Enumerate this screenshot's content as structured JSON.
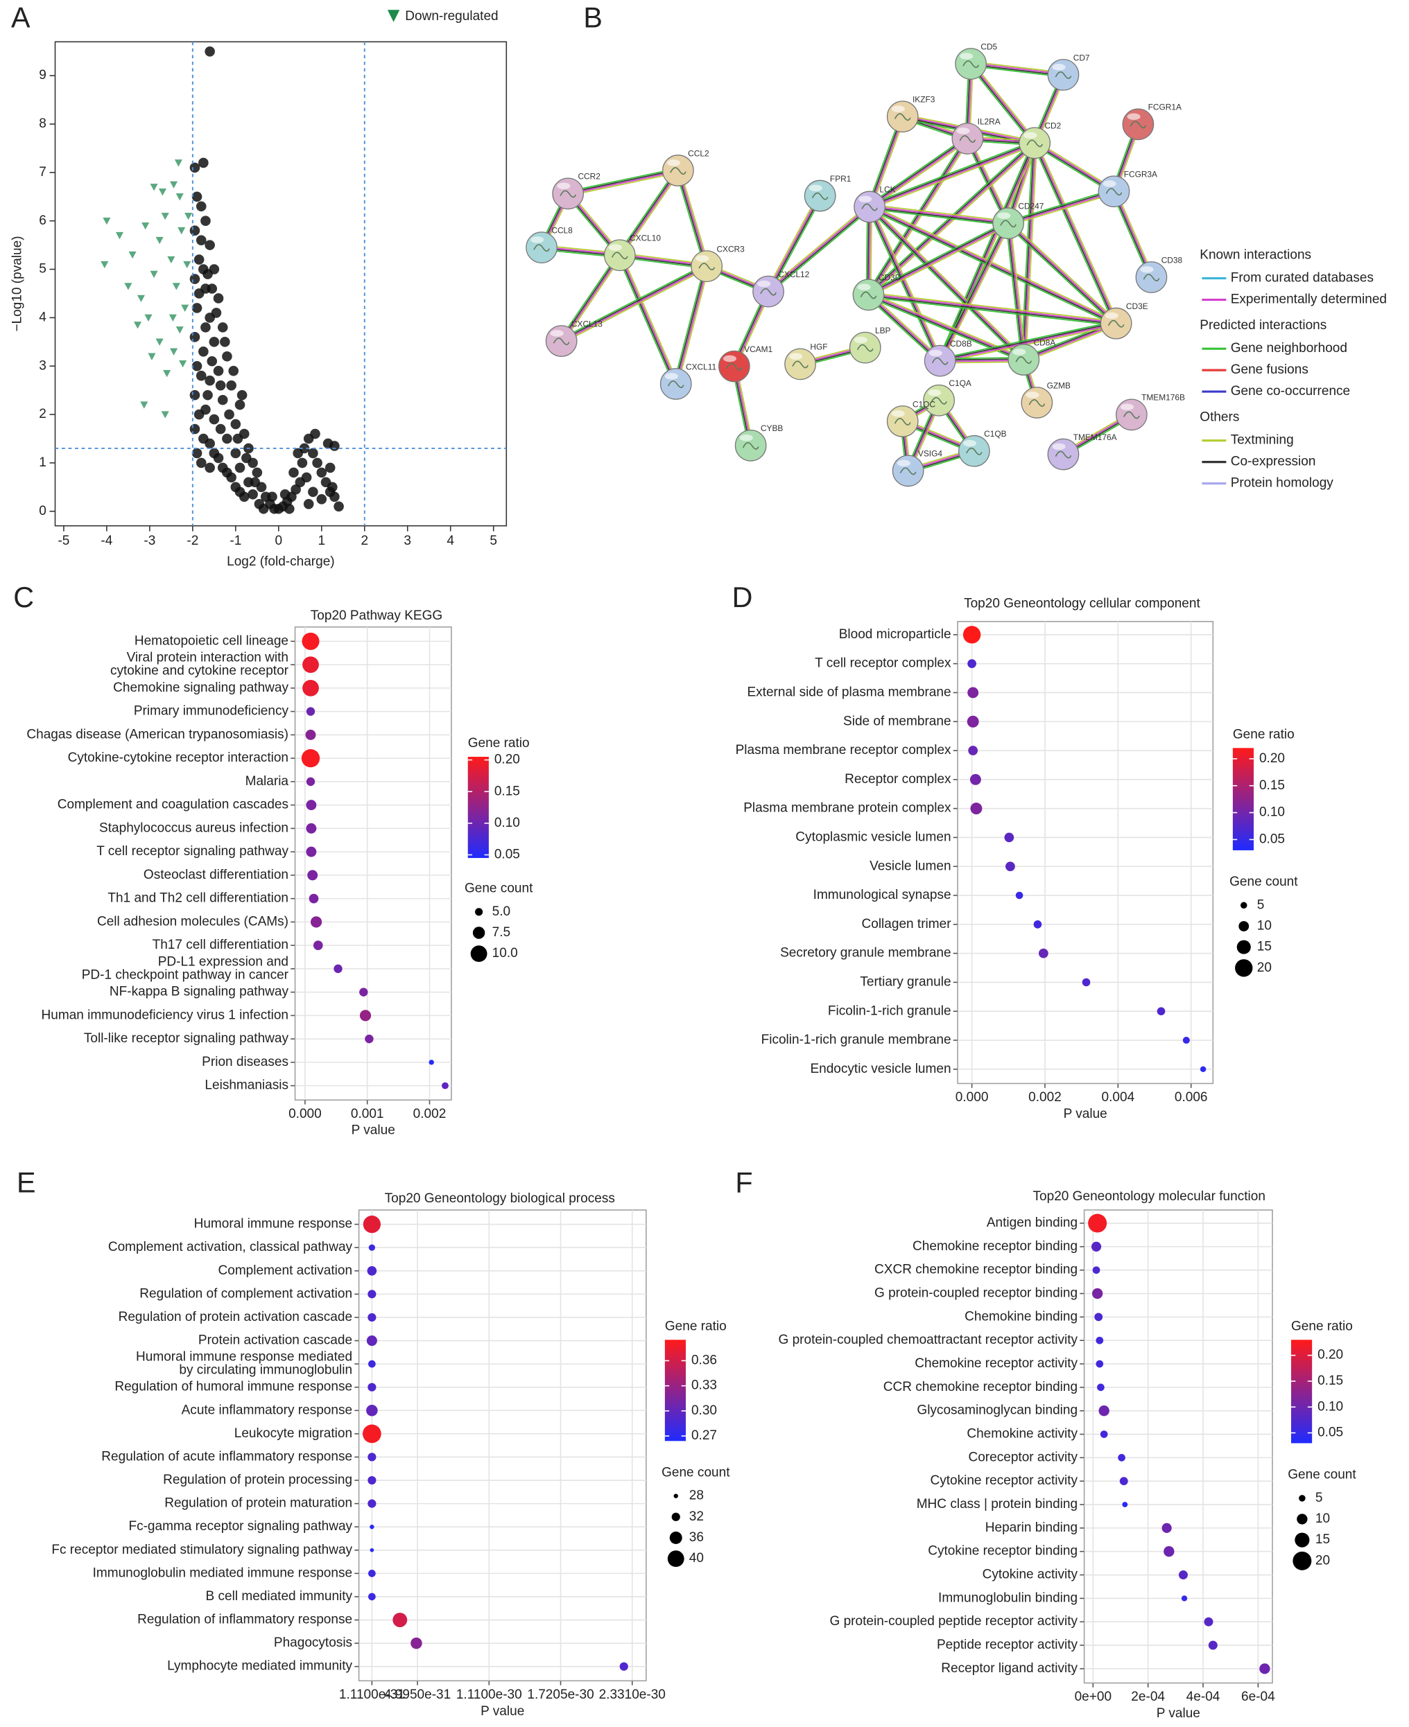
{
  "chart_data": [
    {
      "type": "scatter",
      "panel_label": "A",
      "x_label": "Log2 (fold-charge)",
      "y_label": "−Log10 (pvalue)",
      "xlim": [
        -5.2,
        5.3
      ],
      "ylim": [
        -0.3,
        9.7
      ],
      "xticks": [
        -5,
        -4,
        -3,
        -2,
        -1,
        0,
        1,
        2,
        3,
        4,
        5
      ],
      "yticks": [
        0,
        1,
        2,
        3,
        4,
        5,
        6,
        7,
        8,
        9
      ],
      "threshold_x": [
        -2,
        2
      ],
      "threshold_y": [
        1.3
      ],
      "threshold_color": "#4a90d9",
      "series": [
        {
          "color": "#111111",
          "marker": "circle",
          "x": [
            -1.6,
            -1.95,
            -1.75,
            -1.9,
            -1.8,
            -1.7,
            -1.95,
            -1.6,
            -1.85,
            -1.5,
            -1.95,
            -1.7,
            -1.4,
            -1.9,
            -1.6,
            -1.3,
            -1.95,
            -1.5,
            -1.75,
            -1.2,
            -1.9,
            -1.4,
            -1.6,
            -1.1,
            -1.95,
            -1.3,
            -0.9,
            -1.7,
            -1.5,
            -1.0,
            -1.95,
            -0.8,
            -1.2,
            -1.6,
            -0.7,
            -1.0,
            -1.4,
            -0.6,
            -1.8,
            -0.9,
            -1.2,
            -0.5,
            -0.7,
            -1.0,
            -0.4,
            -0.6,
            -0.3,
            -0.8,
            -0.2,
            -0.45,
            0,
            -0.1,
            0.1,
            0.2,
            0.3,
            0.4,
            0.5,
            0.35,
            0.55,
            0.6,
            0.45,
            0.7,
            0.8,
            0.9,
            1.0,
            0.65,
            1.1,
            1.2,
            1.25,
            0.8,
            1.3,
            0.85,
            1.15,
            1.2,
            1.3,
            1.0,
            0.7,
            1.4,
            -1.8,
            -1.65,
            -1.45,
            -1.25,
            -1.05,
            -0.85,
            -1.35,
            -1.55,
            -1.7,
            -1.85,
            -1.75,
            -1.55,
            -1.15,
            -0.95,
            -0.75,
            -0.55,
            -1.35,
            -1.8,
            -1.65,
            -1.85,
            -1.75,
            -1.5,
            -1.3,
            -1.1,
            -0.9,
            -0.35,
            -0.15,
            0.15,
            0.25,
            -1.9,
            -1.6
          ],
          "values": [
            9.5,
            7.1,
            7.2,
            6.5,
            6.3,
            6.0,
            5.8,
            5.5,
            5.2,
            5.0,
            4.8,
            4.6,
            4.4,
            4.2,
            4.0,
            3.8,
            3.6,
            3.5,
            3.3,
            3.2,
            3.0,
            2.9,
            2.7,
            2.6,
            2.4,
            2.3,
            2.2,
            2.1,
            1.9,
            1.8,
            1.7,
            1.6,
            1.5,
            1.4,
            1.3,
            1.2,
            1.1,
            1.0,
            1.0,
            0.9,
            0.8,
            0.8,
            0.6,
            0.5,
            0.5,
            0.35,
            0.3,
            0.3,
            0.15,
            0.15,
            0.05,
            0.05,
            0.1,
            0.2,
            0.3,
            0.45,
            0.6,
            0.8,
            1.0,
            1.3,
            1.2,
            1.5,
            1.2,
            1.0,
            0.8,
            0.7,
            0.6,
            0.9,
            0.5,
            0.4,
            1.35,
            1.6,
            1.4,
            0.4,
            0.3,
            0.25,
            0.15,
            0.1,
            5.6,
            4.9,
            4.1,
            3.5,
            2.9,
            2.4,
            2.6,
            3.1,
            3.8,
            4.5,
            5.0,
            4.6,
            2.0,
            1.5,
            1.1,
            0.6,
            1.7,
            2.8,
            2.4,
            2.0,
            1.5,
            1.2,
            0.9,
            0.7,
            0.4,
            0.05,
            0.3,
            0.35,
            0.05,
            1.2,
            0.9
          ]
        },
        {
          "name": "Down-regulated",
          "color": "#5aa880",
          "marker": "triangle",
          "x": [
            -4.0,
            -3.13,
            -2.64,
            -2.9,
            -2.7,
            -2.44,
            -2.3,
            -4.05,
            -3.7,
            -3.4,
            -3.5,
            -3.2,
            -3.03,
            -2.9,
            -2.77,
            -2.64,
            -2.5,
            -2.38,
            -2.3,
            -2.44,
            -2.6,
            -2.26,
            -2.18,
            -2.13,
            -2.77,
            -3.1,
            -3.28,
            -2.95,
            -2.46,
            -2.23,
            -2.1,
            -2.33
          ],
          "values": [
            6.0,
            2.2,
            2.0,
            6.7,
            6.6,
            6.75,
            6.5,
            5.1,
            5.7,
            5.3,
            4.65,
            4.4,
            4.0,
            4.9,
            5.6,
            6.1,
            5.2,
            4.65,
            3.75,
            3.3,
            2.85,
            5.8,
            4.2,
            5.1,
            3.5,
            5.9,
            3.85,
            3.2,
            4.0,
            3.05,
            6.1,
            7.2
          ]
        }
      ]
    },
    {
      "type": "dot",
      "panel_label": "C",
      "title": "Top20 Pathway KEGG",
      "x_label": "P value",
      "categories": [
        "Hematopoietic cell lineage",
        [
          "Viral protein interaction with",
          "cytokine and cytokine receptor"
        ],
        "Chemokine signaling pathway",
        "Primary immunodeficiency",
        "Chagas disease (American trypanosomiasis)",
        "Cytokine-cytokine receptor interaction",
        "Malaria",
        "Complement and coagulation cascades",
        "Staphylococcus aureus infection",
        "T cell receptor signaling pathway",
        "Osteoclast differentiation",
        "Th1 and Th2 cell differentiation",
        "Cell adhesion molecules (CAMs)",
        "Th17 cell differentiation",
        [
          "PD-L1 expression and",
          "PD-1 checkpoint pathway in cancer"
        ],
        "NF-kappa B signaling pathway",
        "Human immunodeficiency virus 1 infection",
        "Toll-like receptor signaling pathway",
        "Prion diseases",
        "Leishmaniasis"
      ],
      "values": [
        9e-05,
        9e-05,
        9e-05,
        9e-05,
        9e-05,
        9e-05,
        9e-05,
        0.0001,
        0.0001,
        0.0001,
        0.00012,
        0.00014,
        0.00018,
        0.00021,
        0.00053,
        0.00094,
        0.00097,
        0.00103,
        0.00203,
        0.00225
      ],
      "gene_ratio": [
        0.2,
        0.19,
        0.19,
        0.1,
        0.12,
        0.2,
        0.11,
        0.11,
        0.11,
        0.11,
        0.11,
        0.11,
        0.12,
        0.11,
        0.1,
        0.11,
        0.13,
        0.11,
        0.05,
        0.09
      ],
      "gene_count": [
        10.5,
        10,
        10,
        5.5,
        6.5,
        11,
        5.5,
        6.5,
        6.5,
        6.5,
        6.5,
        6,
        7,
        6,
        5.5,
        5.5,
        7,
        5.5,
        3.5,
        4.5
      ],
      "xlim": [
        -0.00016,
        0.00235
      ],
      "xticks": [
        {
          "value": 0,
          "label": "0.000"
        },
        0.001,
        0.002
      ],
      "color_title": "Gene ratio",
      "color_lim": [
        0.045,
        0.205
      ],
      "color_ticks": [
        {
          "value": 0.2,
          "label": "0.20"
        },
        0.15,
        {
          "value": 0.1,
          "label": "0.10"
        },
        0.05
      ],
      "colors": [
        "#1f2bff",
        "#ff1a1a"
      ],
      "size_title": "Gene count",
      "size_ticks": [
        {
          "value": 5,
          "label": "5.0"
        },
        7.5,
        {
          "value": 10,
          "label": "10.0"
        }
      ]
    },
    {
      "type": "dot",
      "panel_label": "D",
      "title": "Top20 Geneontology cellular component",
      "x_label": "P value",
      "categories": [
        "Blood microparticle",
        "T cell receptor complex",
        "External side of plasma membrane",
        "Side of membrane",
        "Plasma membrane receptor complex",
        "Receptor complex",
        "Plasma membrane protein complex",
        "Cytoplasmic vesicle lumen",
        "Vesicle lumen",
        "Immunological synapse",
        "Collagen trimer",
        "Secretory granule membrane",
        "Tertiary granule",
        "Ficolin-1-rich granule",
        "Ficolin-1-rich granule membrane",
        "Endocytic vesicle lumen"
      ],
      "values": [
        0.0,
        0.0,
        3e-05,
        3e-05,
        3e-05,
        0.0001,
        0.00012,
        0.00102,
        0.00105,
        0.0013,
        0.0018,
        0.00196,
        0.00313,
        0.00518,
        0.00587,
        0.00633
      ],
      "gene_ratio": [
        0.22,
        0.07,
        0.11,
        0.11,
        0.09,
        0.1,
        0.11,
        0.08,
        0.08,
        0.05,
        0.06,
        0.09,
        0.07,
        0.07,
        0.05,
        0.04
      ],
      "gene_count": [
        20,
        8,
        11,
        12,
        9,
        11,
        12,
        9,
        9,
        6,
        7,
        9,
        7,
        7,
        5.5,
        4
      ],
      "xlim": [
        -0.00039,
        0.0066
      ],
      "xticks": [
        {
          "value": 0,
          "label": "0.000"
        },
        0.002,
        0.004,
        0.006
      ],
      "color_title": "Gene ratio",
      "color_lim": [
        0.03,
        0.22
      ],
      "color_ticks": [
        {
          "value": 0.2,
          "label": "0.20"
        },
        0.15,
        {
          "value": 0.1,
          "label": "0.10"
        },
        0.05
      ],
      "colors": [
        "#1f2bff",
        "#ff1a1a"
      ],
      "size_title": "Gene count",
      "size_ticks": [
        5,
        10,
        15,
        20
      ]
    },
    {
      "type": "dot",
      "panel_label": "E",
      "title": "Top20 Geneontology biological process",
      "x_label": "P value",
      "categories": [
        "Humoral immune response",
        "Complement activation, classical pathway",
        "Complement activation",
        "Regulation of complement activation",
        "Regulation of protein activation cascade",
        "Protein activation cascade",
        [
          "Humoral immune response mediated",
          "by circulating immunoglobulin"
        ],
        "Regulation of humoral immune response",
        "Acute inflammatory response",
        "Leukocyte migration",
        "Regulation of acute inflammatory response",
        "Regulation of protein processing",
        "Regulation of protein maturation",
        "Fc-gamma receptor signaling pathway",
        "Fc receptor mediated stimulatory signaling pathway",
        "Immunoglobulin mediated immune response",
        "B cell mediated immunity",
        "Regulation of inflammatory response",
        "Phagocytosis",
        "Lymphocyte mediated immunity"
      ],
      "values": [
        1.11e-31,
        1.11e-31,
        1.11e-31,
        1.11e-31,
        1.11e-31,
        1.11e-31,
        1.11e-31,
        1.11e-31,
        1.11e-31,
        1.11e-31,
        1.11e-31,
        1.11e-31,
        1.11e-31,
        1.11e-31,
        1.11e-31,
        1.11e-31,
        1.11e-31,
        3.5e-31,
        4.9e-31,
        2.26e-30
      ],
      "gene_ratio": [
        0.37,
        0.28,
        0.29,
        0.29,
        0.29,
        0.3,
        0.28,
        0.29,
        0.3,
        0.38,
        0.29,
        0.29,
        0.29,
        0.27,
        0.27,
        0.28,
        0.28,
        0.36,
        0.32,
        0.29
      ],
      "gene_count": [
        41,
        30,
        33,
        32,
        32,
        34,
        31,
        32,
        35,
        42,
        32,
        32,
        32,
        28,
        27.5,
        31,
        31,
        38,
        35,
        32
      ],
      "xlim": [
        0,
        2.45e-30
      ],
      "xticks": [
        {
          "value": 1.11e-31,
          "label": "1.1100e-31"
        },
        {
          "value": 4.995e-31,
          "label": "4.9950e-31"
        },
        {
          "value": 1.11e-30,
          "label": "1.1100e-30"
        },
        {
          "value": 1.7205e-30,
          "label": "1.7205e-30"
        },
        {
          "value": 2.331e-30,
          "label": "2.3310e-30"
        }
      ],
      "color_title": "Gene ratio",
      "color_lim": [
        0.264,
        0.385
      ],
      "color_ticks": [
        0.36,
        0.33,
        {
          "value": 0.3,
          "label": "0.30"
        },
        0.27
      ],
      "colors": [
        "#1f2bff",
        "#ff1a1a"
      ],
      "size_title": "Gene count",
      "size_ticks": [
        28,
        32,
        36,
        40
      ]
    },
    {
      "type": "dot",
      "panel_label": "F",
      "title": "Top20 Geneontology molecular function",
      "x_label": "P value",
      "categories": [
        "Antigen binding",
        "Chemokine receptor binding",
        "CXCR chemokine receptor binding",
        "G protein-coupled receptor binding",
        "Chemokine binding",
        "G protein-coupled chemoattractant receptor activity",
        "Chemokine receptor activity",
        "CCR chemokine receptor binding",
        "Glycosaminoglycan binding",
        "Chemokine activity",
        "Coreceptor activity",
        "Cytokine receptor activity",
        "MHC class | protein binding",
        "Heparin binding",
        "Cytokine receptor binding",
        "Cytokine activity",
        "Immunoglobulin binding",
        "G protein-coupled peptide receptor activity",
        "Peptide receptor activity",
        "Receptor ligand activity"
      ],
      "values": [
        1.6e-05,
        1.2e-05,
        1.2e-05,
        1.6e-05,
        2e-05,
        2.4e-05,
        2.4e-05,
        2.8e-05,
        4e-05,
        4e-05,
        0.000104,
        0.000112,
        0.000116,
        0.000268,
        0.000276,
        0.000328,
        0.000332,
        0.00042,
        0.000436,
        0.000624
      ],
      "gene_ratio": [
        0.22,
        0.08,
        0.07,
        0.11,
        0.07,
        0.06,
        0.06,
        0.06,
        0.1,
        0.06,
        0.06,
        0.07,
        0.04,
        0.1,
        0.1,
        0.08,
        0.05,
        0.08,
        0.08,
        0.1
      ],
      "gene_count": [
        20,
        9,
        6,
        10,
        7,
        6,
        6,
        6,
        10,
        6,
        6,
        7,
        3.5,
        9,
        10,
        8,
        4,
        8,
        8,
        10
      ],
      "xlim": [
        -3.2e-05,
        0.000652
      ],
      "xticks": [
        {
          "value": 0,
          "label": "0e+00"
        },
        {
          "value": 0.0002,
          "label": "2e-04"
        },
        {
          "value": 0.0004,
          "label": "4e-04"
        },
        {
          "value": 0.0006,
          "label": "6e-04"
        }
      ],
      "color_title": "Gene ratio",
      "color_lim": [
        0.03,
        0.23
      ],
      "color_ticks": [
        {
          "value": 0.2,
          "label": "0.20"
        },
        0.15,
        {
          "value": 0.1,
          "label": "0.10"
        },
        0.05
      ],
      "colors": [
        "#1f2bff",
        "#ff1a1a"
      ],
      "size_title": "Gene count",
      "size_ticks": [
        5,
        10,
        15,
        20
      ]
    }
  ],
  "network": {
    "panel_label": "B",
    "nodes": [
      "CD5",
      "CD7",
      "IKZF3",
      "IL2RA",
      "CD2",
      "FCGR1A",
      "FPR1",
      "LCK",
      "CD247",
      "FCGR3A",
      "CCL2",
      "CCR2",
      "CXCL10",
      "CXCR3",
      "CCL8",
      "CXCL12",
      "CD3D",
      "CD38",
      "CD3E",
      "CXCL13",
      "LBP",
      "HGF",
      "VCAM1",
      "CD8B",
      "CD8A",
      "CXCL11",
      "GZMB",
      "TMEM176B",
      "C1QA",
      "C1QC",
      "C1QB",
      "TMEM176A",
      "CYBB",
      "VSIG4"
    ],
    "legend": [
      {
        "heading": "Known interactions",
        "items": [
          {
            "name": "From curated databases",
            "color": "#3ab7d8"
          },
          {
            "name": "Experimentally determined",
            "color": "#d43fd0"
          }
        ]
      },
      {
        "heading": "Predicted interactions",
        "items": [
          {
            "name": "Gene neighborhood",
            "color": "#36c236"
          },
          {
            "name": "Gene fusions",
            "color": "#e83a3a"
          },
          {
            "name": "Gene co-occurrence",
            "color": "#3a3ac8"
          }
        ]
      },
      {
        "heading": "Others",
        "items": [
          {
            "name": "Textmining",
            "color": "#b5cc2e"
          },
          {
            "name": "Co-expression",
            "color": "#333333"
          },
          {
            "name": "Protein homology",
            "color": "#a9a9ee"
          }
        ]
      }
    ]
  }
}
